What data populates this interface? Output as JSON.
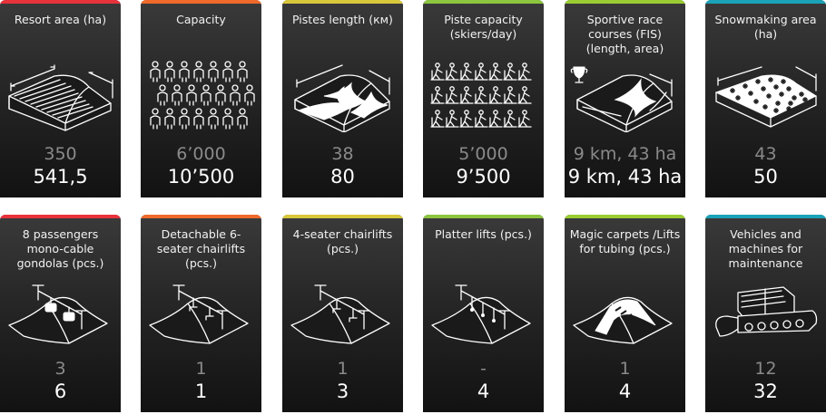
{
  "accent": {
    "red": "#e8323c",
    "orange": "#ef6a2b",
    "yellow": "#d9c83a",
    "green": "#8cc63f",
    "lime": "#9acd32",
    "teal": "#1aa3b8"
  },
  "cards": [
    {
      "title": "Resort area (ha)",
      "old": "350",
      "new": "541,5",
      "icon": "terrain-area-icon",
      "color": "#e8323c"
    },
    {
      "title": "Capacity",
      "old": "6ʼ000",
      "new": "10ʼ500",
      "icon": "people-crowd-icon",
      "color": "#ef6a2b"
    },
    {
      "title": "Pistes length (км)",
      "old": "38",
      "new": "80",
      "icon": "pistes-icon",
      "color": "#d9c83a"
    },
    {
      "title": "Piste capacity (skiers/day)",
      "old": "5ʼ000",
      "new": "9ʼ500",
      "icon": "skiers-icon",
      "color": "#8cc63f"
    },
    {
      "title": "Sportive race courses (FIS) (length, area)",
      "old": "9 km, 43 ha",
      "new": "9 km, 43 ha",
      "icon": "trophy-slope-icon",
      "color": "#9acd32"
    },
    {
      "title": "Snowmaking area (ha)",
      "old": "43",
      "new": "50",
      "icon": "snowmaking-icon",
      "color": "#1aa3b8"
    },
    {
      "title": "8 passengers mono-cable gondolas (pcs.)",
      "old": "3",
      "new": "6",
      "icon": "gondola-icon",
      "color": "#e8323c"
    },
    {
      "title": "Detachable 6-seater chairlifts (pcs.)",
      "old": "1",
      "new": "1",
      "icon": "chairlift6-icon",
      "color": "#ef6a2b"
    },
    {
      "title": "4-seater chairlifts (pcs.)",
      "old": "1",
      "new": "3",
      "icon": "chairlift4-icon",
      "color": "#d9c83a"
    },
    {
      "title": "Platter lifts (pcs.)",
      "old": "-",
      "new": "4",
      "icon": "platter-lift-icon",
      "color": "#8cc63f"
    },
    {
      "title": "Magic carpets /Lifts for tubing (pcs.)",
      "old": "1",
      "new": "4",
      "icon": "magic-carpet-icon",
      "color": "#9acd32"
    },
    {
      "title": "Vehicles and machines for maintenance",
      "old": "12",
      "new": "32",
      "icon": "snowcat-icon",
      "color": "#1aa3b8"
    }
  ]
}
